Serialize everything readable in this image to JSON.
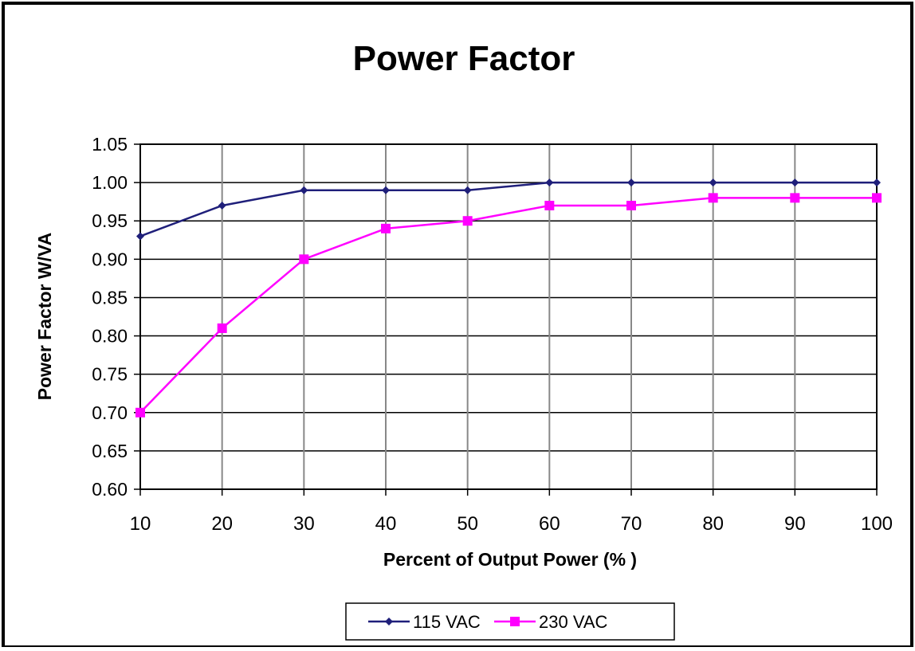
{
  "chart_data": {
    "type": "line",
    "title": "Power Factor",
    "xlabel": "Percent of Output Power (% )",
    "ylabel": "Power Factor W/VA",
    "x": [
      10,
      20,
      30,
      40,
      50,
      60,
      70,
      80,
      90,
      100
    ],
    "x_ticks": [
      "10",
      "20",
      "30",
      "40",
      "50",
      "60",
      "70",
      "80",
      "90",
      "100"
    ],
    "xlim": [
      10,
      100
    ],
    "ylim": [
      0.6,
      1.05
    ],
    "y_ticks": [
      "0.60",
      "0.65",
      "0.70",
      "0.75",
      "0.80",
      "0.85",
      "0.90",
      "0.95",
      "1.00",
      "1.05"
    ],
    "y_tick_values": [
      0.6,
      0.65,
      0.7,
      0.75,
      0.8,
      0.85,
      0.9,
      0.95,
      1.0,
      1.05
    ],
    "grid": true,
    "legend_position": "bottom-center",
    "series": [
      {
        "name": "115 VAC",
        "values": [
          0.93,
          0.97,
          0.99,
          0.99,
          0.99,
          1.0,
          1.0,
          1.0,
          1.0,
          1.0
        ],
        "color": "#1f1f7a",
        "marker": "diamond"
      },
      {
        "name": "230 VAC",
        "values": [
          0.7,
          0.81,
          0.9,
          0.94,
          0.95,
          0.97,
          0.97,
          0.98,
          0.98,
          0.98
        ],
        "color": "#ff00ff",
        "marker": "square"
      }
    ]
  }
}
